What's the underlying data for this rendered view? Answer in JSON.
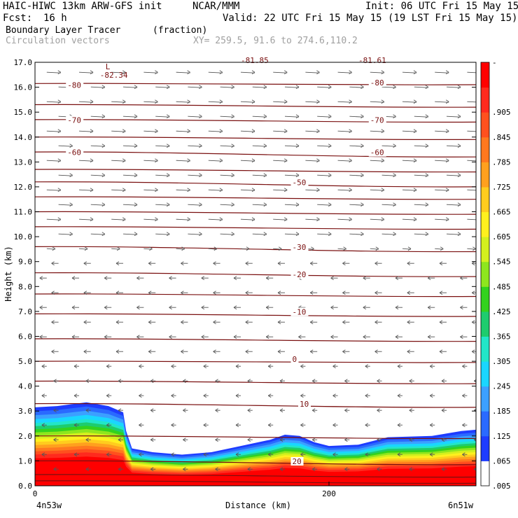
{
  "header": {
    "title_left": "HAIC-HIWC 13km ARW-GFS init",
    "title_org": "NCAR/MMM",
    "init": "Init: 06 UTC Fri 15 May 15",
    "fcst_label": "Fcst:",
    "fcst_value": "16 h",
    "valid": "Valid: 22 UTC Fri 15 May 15 (19 LST Fri 15 May 15)",
    "field1": "Boundary Layer Tracer",
    "field1_units": "(fraction)",
    "field2": "Circulation vectors",
    "xy": "XY= 259.5, 91.6 to 274.6,110.2"
  },
  "chart_data": {
    "type": "heatmap",
    "xlabel": "Distance (km)",
    "ylabel": "Height (km)",
    "xlim": [
      0,
      300
    ],
    "ylim": [
      0,
      17
    ],
    "x_ticks": [
      0,
      200
    ],
    "y_ticks": [
      "0.0",
      "1.0",
      "2.0",
      "3.0",
      "4.0",
      "5.0",
      "6.0",
      "7.0",
      "8.0",
      "9.0",
      "10.0",
      "11.0",
      "12.0",
      "13.0",
      "14.0",
      "15.0",
      "16.0",
      "17.0"
    ],
    "x_endpoint_labels": {
      "left": "4n53w",
      "right": "6n51w"
    },
    "tracer_top_km": [
      [
        0,
        3.15
      ],
      [
        15,
        3.2
      ],
      [
        35,
        3.35
      ],
      [
        50,
        3.2
      ],
      [
        60,
        2.95
      ],
      [
        62,
        2.2
      ],
      [
        66,
        1.5
      ],
      [
        80,
        1.35
      ],
      [
        100,
        1.25
      ],
      [
        120,
        1.35
      ],
      [
        140,
        1.6
      ],
      [
        160,
        1.85
      ],
      [
        170,
        2.05
      ],
      [
        180,
        2.0
      ],
      [
        190,
        1.75
      ],
      [
        200,
        1.6
      ],
      [
        220,
        1.65
      ],
      [
        240,
        1.95
      ],
      [
        270,
        2.0
      ],
      [
        290,
        2.2
      ],
      [
        300,
        2.25
      ]
    ],
    "colorbar": {
      "labels": [
        ".005",
        ".065",
        ".125",
        ".185",
        ".245",
        ".305",
        ".365",
        ".425",
        ".485",
        ".545",
        ".605",
        ".665",
        ".725",
        ".785",
        ".845",
        ".905",
        "-"
      ],
      "colors": [
        "#ffffff",
        "#1e3cff",
        "#2a6aff",
        "#3ca0ff",
        "#1ad6ff",
        "#22e6c8",
        "#1ecc6e",
        "#32d21e",
        "#8ee61e",
        "#d4f01e",
        "#fff01e",
        "#ffcc1e",
        "#ffa01e",
        "#ff781e",
        "#ff501e",
        "#ff2a1e",
        "#ff0000"
      ]
    },
    "temperature_contours": [
      {
        "value": "-80",
        "label_positions": [
          [
            22,
            16.0
          ],
          [
            228,
            16.1
          ]
        ],
        "y_left": 16.15,
        "y_right": 16.1
      },
      {
        "value": "-70",
        "label_positions": [
          [
            22,
            14.6
          ],
          [
            228,
            14.6
          ]
        ],
        "y_left": 14.7,
        "y_right": 14.6
      },
      {
        "value": "-60",
        "label_positions": [
          [
            22,
            13.3
          ],
          [
            228,
            13.3
          ]
        ],
        "y_left": 13.4,
        "y_right": 13.2
      },
      {
        "value": "-50",
        "label_positions": [
          [
            175,
            12.1
          ]
        ],
        "y_left": 12.2,
        "y_right": 12.0
      },
      {
        "value": "-30",
        "label_positions": [
          [
            175,
            9.5
          ]
        ],
        "y_left": 9.6,
        "y_right": 9.4
      },
      {
        "value": "-20",
        "label_positions": [
          [
            175,
            8.4
          ]
        ],
        "y_left": 8.55,
        "y_right": 8.4
      },
      {
        "value": "-10",
        "label_positions": [
          [
            175,
            6.9
          ]
        ],
        "y_left": 6.9,
        "y_right": 6.8
      },
      {
        "value": "0",
        "label_positions": [
          [
            175,
            5.0
          ]
        ],
        "y_left": 5.0,
        "y_right": 4.95
      },
      {
        "value": "10",
        "label_positions": [
          [
            180,
            3.2
          ]
        ],
        "y_left": 3.3,
        "y_right": 3.15
      },
      {
        "value": "20",
        "label_positions": [
          [
            175,
            0.9
          ]
        ],
        "y_left": 1.0,
        "y_right": 0.85
      }
    ],
    "extra_contour_levels_km": [
      15.3,
      14.0,
      12.7,
      11.6,
      11.0,
      10.4,
      7.7,
      5.9,
      4.2,
      2.0,
      0.45,
      0.2
    ],
    "min_label": {
      "text": "-82.34",
      "marker": "L",
      "x": 48,
      "y": 16.6
    },
    "top_partial_labels": [
      {
        "text": "-81.85",
        "x": 140
      },
      {
        "text": "-81.61",
        "x": 220
      }
    ]
  }
}
